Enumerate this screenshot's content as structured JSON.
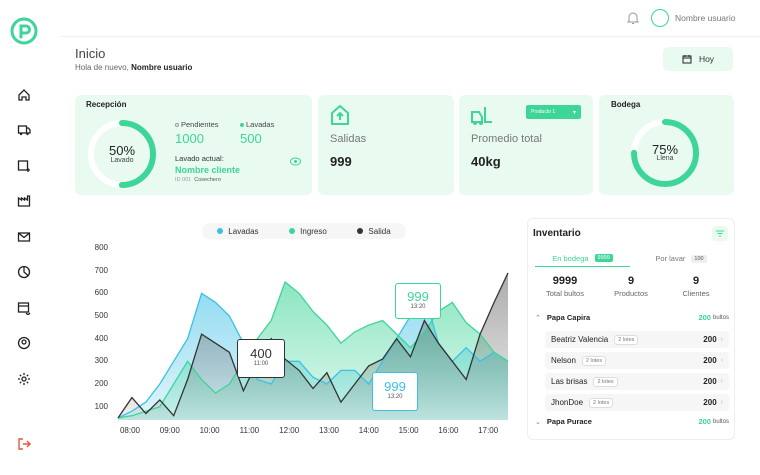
{
  "header": {
    "user_name": "Nombre usuario"
  },
  "page": {
    "title": "Inicio",
    "greeting": "Hola de nuevo,",
    "greeting_name": "Nombre usuario",
    "date_button": "Hoy"
  },
  "recepcion": {
    "title": "Recepción",
    "percent_label": "50%",
    "percent_value": 50,
    "percent_caption": "Lavado",
    "pendientes_label": "Pendientes",
    "pendientes_value": "1000",
    "lavadas_label": "Lavadas",
    "lavadas_value": "500",
    "lavado_actual_label": "Lavado actual:",
    "cliente": "Nombre cliente",
    "code": "ID 001",
    "role": "Cosechero"
  },
  "salidas": {
    "label": "Salidas",
    "value": "999"
  },
  "promedio": {
    "label": "Promedio total",
    "value": "40kg",
    "dropdown": "Producto 1"
  },
  "bodega": {
    "title": "Bodega",
    "percent_label": "75%",
    "percent_value": 75,
    "caption": "Llena"
  },
  "chart_legend": [
    {
      "label": "Lavadas",
      "color": "#3cc0e6"
    },
    {
      "label": "Ingreso",
      "color": "#3ed598"
    },
    {
      "label": "Salida",
      "color": "#333333"
    }
  ],
  "chart_data": {
    "type": "area",
    "x": [
      "08:00",
      "08:20",
      "08:40",
      "09:00",
      "09:20",
      "09:40",
      "10:00",
      "10:20",
      "10:40",
      "11:00",
      "11:20",
      "11:40",
      "12:00",
      "12:20",
      "12:40",
      "13:00",
      "13:20",
      "13:40",
      "14:00",
      "14:20",
      "14:40",
      "15:00",
      "15:20",
      "15:40",
      "16:00",
      "16:20",
      "16:40",
      "17:00",
      "17:20"
    ],
    "y_ticks": [
      100,
      200,
      300,
      400,
      500,
      600,
      700,
      800
    ],
    "x_ticks": [
      "08:00",
      "09:00",
      "10:00",
      "11:00",
      "12:00",
      "13:00",
      "14:00",
      "15:00",
      "16:00",
      "17:00"
    ],
    "ylim": [
      50,
      800
    ],
    "series": [
      {
        "name": "Lavadas",
        "color": "#3cc0e6",
        "values": [
          50,
          80,
          120,
          200,
          300,
          400,
          600,
          560,
          500,
          380,
          220,
          200,
          300,
          300,
          230,
          200,
          260,
          260,
          200,
          300,
          400,
          500,
          600,
          380,
          300,
          360,
          300,
          340,
          300
        ]
      },
      {
        "name": "Ingreso",
        "color": "#3ed598",
        "values": [
          50,
          60,
          80,
          100,
          200,
          300,
          220,
          160,
          200,
          300,
          400,
          480,
          650,
          600,
          520,
          460,
          380,
          430,
          460,
          480,
          420,
          360,
          430,
          520,
          560,
          470,
          420,
          340,
          300
        ]
      },
      {
        "name": "Salida",
        "color": "#333333",
        "values": [
          50,
          140,
          70,
          130,
          60,
          220,
          420,
          380,
          340,
          170,
          300,
          400,
          310,
          260,
          180,
          250,
          120,
          200,
          280,
          310,
          400,
          320,
          480,
          380,
          300,
          220,
          420,
          560,
          690
        ]
      }
    ],
    "annotations": [
      {
        "value": "999",
        "time": "13:20"
      },
      {
        "value": "400",
        "time": "11:00"
      },
      {
        "value": "999",
        "time": "13:20"
      }
    ]
  },
  "inventario": {
    "title": "Inventario",
    "tab_active": "En bodega",
    "tab_active_badge": "9999",
    "tab_other": "Por lavar",
    "tab_other_badge": "100",
    "stats": [
      {
        "value": "9999",
        "label": "Total bultos"
      },
      {
        "value": "9",
        "label": "Productos"
      },
      {
        "value": "9",
        "label": "Clientes"
      }
    ],
    "group1": {
      "name": "Papa Capira",
      "total": "200",
      "unit": "bultos"
    },
    "rows": [
      {
        "name": "Beatriz Valencia",
        "lotes": "2 lotes",
        "value": "200"
      },
      {
        "name": "Nelson",
        "lotes": "2 lotes",
        "value": "200"
      },
      {
        "name": "Las brisas",
        "lotes": "2 lotes",
        "value": "200"
      },
      {
        "name": "JhonDoe",
        "lotes": "2 lotes",
        "value": "200"
      }
    ],
    "group2": {
      "name": "Papa Purace",
      "total": "200",
      "unit": "bultos"
    }
  }
}
